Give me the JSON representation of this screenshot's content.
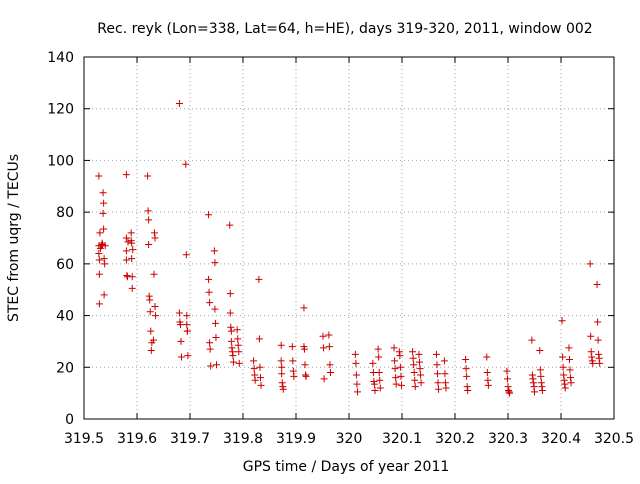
{
  "chart_data": {
    "type": "scatter",
    "title": "Rec. reyk (Lon=338, Lat=64, h=HE), days 319-320, 2011, window 002",
    "xlabel": "GPS time / Days of year 2011",
    "ylabel": "STEC from uqrg / TECUs",
    "xlim": [
      319.5,
      320.5
    ],
    "ylim": [
      0,
      140
    ],
    "x_ticks": [
      319.5,
      319.6,
      319.7,
      319.8,
      319.9,
      320.0,
      320.1,
      320.2,
      320.3,
      320.4,
      320.5
    ],
    "x_tick_labels": [
      "319.5",
      "319.6",
      "319.7",
      "319.8",
      "319.9",
      "320",
      "320.1",
      "320.2",
      "320.3",
      "320.4",
      "320.5"
    ],
    "y_ticks": [
      0,
      20,
      40,
      60,
      80,
      100,
      120,
      140
    ],
    "y_tick_labels": [
      "0",
      "20",
      "40",
      "60",
      "80",
      "100",
      "120",
      "140"
    ],
    "grid": true,
    "marker": "+",
    "marker_color": "#cc0000",
    "series": [
      {
        "x": [
          319.528,
          319.528,
          319.528,
          319.529,
          319.529,
          319.529,
          319.53,
          319.531,
          319.533,
          319.534,
          319.535,
          319.536,
          319.536,
          319.537,
          319.537,
          319.538,
          319.538,
          319.539,
          319.54,
          319.58,
          319.58,
          319.58,
          319.58,
          319.581,
          319.582,
          319.583,
          319.589,
          319.589,
          319.59,
          319.59,
          319.591,
          319.591,
          319.592,
          319.62,
          319.621,
          319.622,
          319.622,
          319.623,
          319.624,
          319.625,
          319.626,
          319.627,
          319.628,
          319.631,
          319.632,
          319.633,
          319.634,
          319.634,
          319.635,
          319.68,
          319.68,
          319.681,
          319.682,
          319.683,
          319.684,
          319.692,
          319.693,
          319.694,
          319.694,
          319.695,
          319.695,
          319.696,
          319.735,
          319.735,
          319.736,
          319.737,
          319.737,
          319.738,
          319.739,
          319.746,
          319.747,
          319.747,
          319.748,
          319.749,
          319.75,
          319.775,
          319.776,
          319.776,
          319.777,
          319.778,
          319.778,
          319.779,
          319.78,
          319.781,
          319.782,
          319.789,
          319.79,
          319.791,
          319.792,
          319.793,
          319.82,
          319.821,
          319.822,
          319.823,
          319.83,
          319.831,
          319.832,
          319.833,
          319.834,
          319.872,
          319.872,
          319.873,
          319.873,
          319.874,
          319.875,
          319.876,
          319.893,
          319.894,
          319.895,
          319.896,
          319.915,
          319.915,
          319.916,
          319.917,
          319.918,
          319.919,
          319.951,
          319.952,
          319.953,
          319.962,
          319.963,
          319.964,
          319.965,
          320.012,
          320.013,
          320.014,
          320.015,
          320.016,
          320.045,
          320.046,
          320.047,
          320.048,
          320.049,
          320.055,
          320.056,
          320.057,
          320.058,
          320.059,
          320.085,
          320.086,
          320.087,
          320.088,
          320.089,
          320.095,
          320.096,
          320.097,
          320.098,
          320.099,
          320.12,
          320.121,
          320.122,
          320.123,
          320.124,
          320.125,
          320.132,
          320.133,
          320.134,
          320.135,
          320.136,
          320.165,
          320.166,
          320.167,
          320.168,
          320.169,
          320.18,
          320.181,
          320.182,
          320.183,
          320.22,
          320.221,
          320.222,
          320.223,
          320.224,
          320.26,
          320.261,
          320.262,
          320.263,
          320.298,
          320.299,
          320.3,
          320.301,
          320.302,
          320.303,
          320.345,
          320.346,
          320.347,
          320.348,
          320.349,
          320.35,
          320.36,
          320.361,
          320.362,
          320.363,
          320.364,
          320.365,
          320.402,
          320.403,
          320.404,
          320.405,
          320.406,
          320.407,
          320.408,
          320.415,
          320.416,
          320.417,
          320.418,
          320.419,
          320.455,
          320.456,
          320.457,
          320.458,
          320.459,
          320.46,
          320.468,
          320.469,
          320.47,
          320.471,
          320.472,
          320.473
        ],
        "y": [
          94,
          67,
          64,
          61.5,
          56,
          44.5,
          72,
          66,
          67,
          68,
          67.5,
          79.5,
          87.5,
          83.5,
          73.5,
          62,
          48,
          60,
          67,
          94.5,
          70,
          65,
          61.5,
          55.5,
          55,
          68.5,
          72,
          69,
          68,
          62,
          55,
          50.5,
          65.5,
          94,
          80.5,
          77,
          67.5,
          47.5,
          46,
          41.5,
          34,
          26.5,
          29.5,
          30.5,
          56,
          72,
          70,
          43.5,
          40,
          122,
          41,
          37.5,
          36.5,
          30,
          24,
          98.5,
          63.5,
          40,
          36.5,
          34,
          34,
          24.5,
          79,
          54,
          49,
          45,
          29.5,
          27,
          20.5,
          65,
          60.5,
          42.5,
          37,
          31.5,
          21,
          75,
          48.5,
          41,
          35.5,
          34,
          30,
          27.5,
          26,
          24.5,
          22,
          34.5,
          31,
          28.5,
          26,
          21.5,
          22.5,
          19.5,
          17,
          15,
          54,
          31,
          20,
          16,
          13,
          28.5,
          22.5,
          20,
          17.5,
          14,
          12.5,
          11.5,
          28,
          22.5,
          18.5,
          16.5,
          43,
          28,
          27,
          21,
          17,
          16.5,
          32,
          27.5,
          15.5,
          32.5,
          28,
          21,
          18,
          25,
          21.5,
          17,
          13.5,
          10.5,
          21.5,
          18,
          14.5,
          13.5,
          11,
          27,
          24,
          18,
          15,
          12,
          27.5,
          22.5,
          19.5,
          16,
          13.5,
          26,
          24.5,
          20,
          16.5,
          13,
          26,
          23.5,
          21,
          18,
          15,
          12.5,
          25,
          22,
          19.5,
          17,
          14,
          25,
          21,
          17.5,
          14,
          11.5,
          22.5,
          17.5,
          14,
          12,
          23,
          19.5,
          16.5,
          12.5,
          11,
          24,
          18,
          15,
          13,
          18.5,
          15.5,
          12.5,
          11,
          10.5,
          10,
          30.5,
          17,
          15.5,
          14,
          12.5,
          10.5,
          26.5,
          19,
          16.5,
          14,
          12.5,
          11,
          38,
          24,
          20,
          17,
          15,
          13.5,
          12,
          27.5,
          23,
          19,
          16,
          14,
          60,
          32,
          26,
          24,
          22.5,
          21.5,
          52,
          37.5,
          30.5,
          25,
          23.5,
          21.5
        ]
      }
    ]
  }
}
